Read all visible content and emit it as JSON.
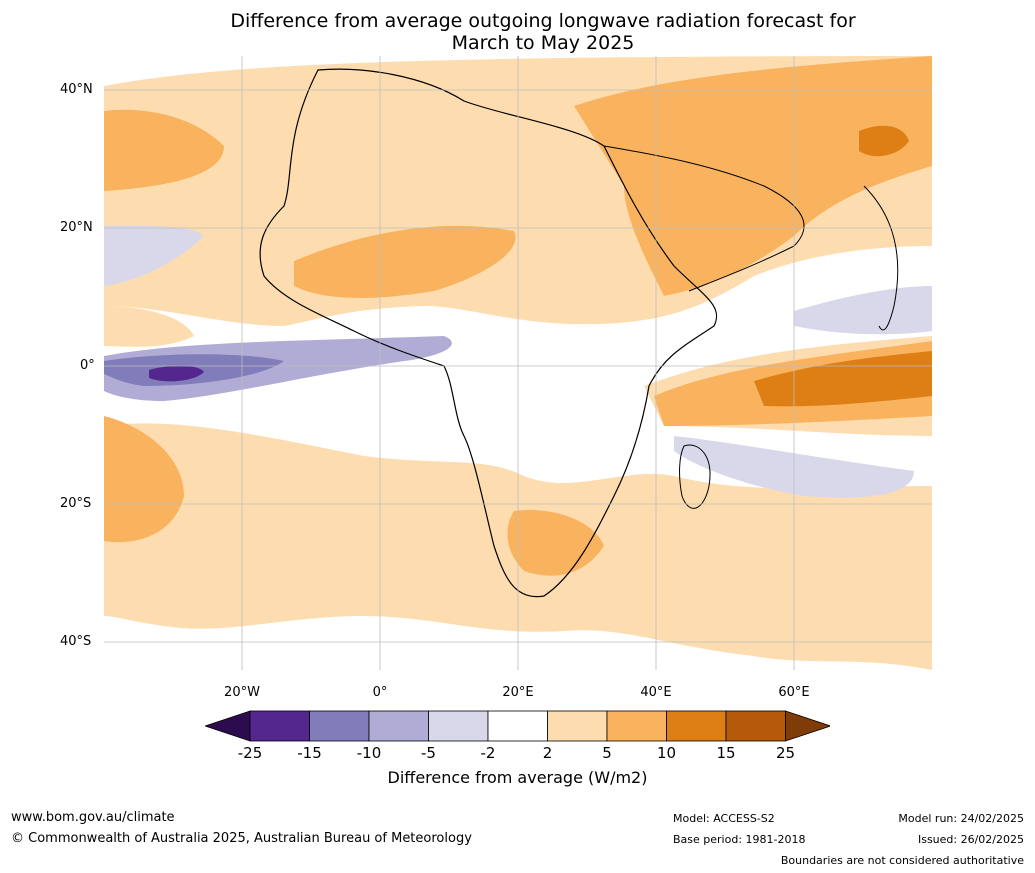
{
  "title_line1": "Difference from average outgoing longwave radiation forecast for",
  "title_line2": "March to May 2025",
  "latitude_labels": [
    "40°N",
    "20°N",
    "0°",
    "20°S",
    "40°S"
  ],
  "longitude_labels": [
    "20°W",
    "0°",
    "20°E",
    "40°E",
    "60°E"
  ],
  "colorbar": {
    "ticks": [
      "-25",
      "-15",
      "-10",
      "-5",
      "-2",
      "2",
      "5",
      "10",
      "15",
      "25"
    ],
    "colors": [
      "#2d0b4f",
      "#54278f",
      "#807dba",
      "#b1acd5",
      "#d9d8ea",
      "#ffffff",
      "#fdddb0",
      "#f9b35f",
      "#de7f15",
      "#b45a0a",
      "#7f3b08"
    ],
    "label": "Difference from average (W/m2)"
  },
  "footer": {
    "website": "www.bom.gov.au/climate",
    "copyright": "© Commonwealth of Australia 2025, Australian Bureau of Meteorology",
    "model": "Model: ACCESS-S2",
    "base_period": "Base period: 1981-2018",
    "model_run": "Model run: 24/02/2025",
    "issued": "Issued: 26/02/2025",
    "boundaries_note": "Boundaries are not considered authoritative"
  }
}
